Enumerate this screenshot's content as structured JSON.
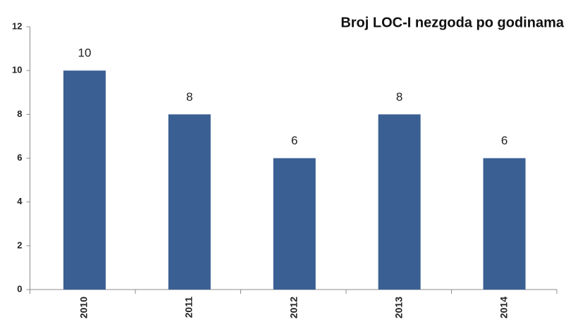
{
  "chart_data": {
    "type": "bar",
    "title": "Broj LOC-I  nezgoda po godinama",
    "categories": [
      "2010",
      "2011",
      "2012",
      "2013",
      "2014"
    ],
    "values": [
      10,
      8,
      6,
      8,
      6
    ],
    "color": "#3a5f93",
    "ylim": [
      0,
      12
    ],
    "yticks": [
      0,
      2,
      4,
      6,
      8,
      10,
      12
    ],
    "grid": false
  }
}
